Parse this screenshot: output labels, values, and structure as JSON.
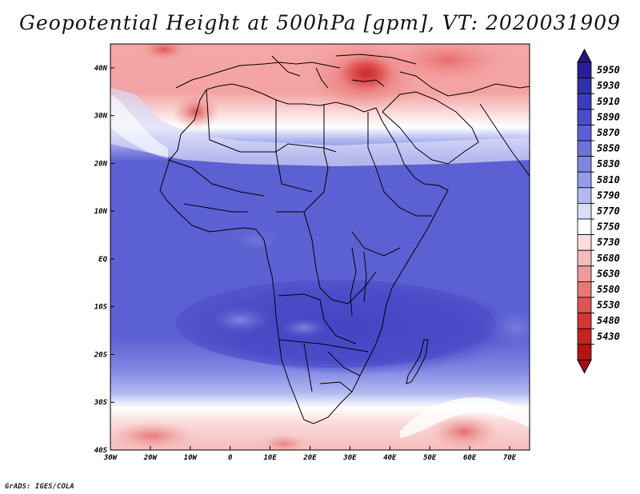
{
  "title": "Geopotential Height at 500hPa [gpm], VT: 2020031909",
  "credit": "GrADS: IGES/COLA",
  "map": {
    "variable": "Geopotential Height at 500hPa",
    "units": "gpm",
    "valid_time": "2020031909",
    "lon_range": [
      -30,
      75
    ],
    "lat_range": [
      -40,
      45
    ],
    "lon_ticks": [
      {
        "value": -30,
        "label": "30W"
      },
      {
        "value": -20,
        "label": "20W"
      },
      {
        "value": -10,
        "label": "10W"
      },
      {
        "value": 0,
        "label": "0"
      },
      {
        "value": 10,
        "label": "10E"
      },
      {
        "value": 20,
        "label": "20E"
      },
      {
        "value": 30,
        "label": "30E"
      },
      {
        "value": 40,
        "label": "40E"
      },
      {
        "value": 50,
        "label": "50E"
      },
      {
        "value": 60,
        "label": "60E"
      },
      {
        "value": 70,
        "label": "70E"
      }
    ],
    "lat_ticks": [
      {
        "value": 40,
        "label": "40N"
      },
      {
        "value": 30,
        "label": "30N"
      },
      {
        "value": 20,
        "label": "20N"
      },
      {
        "value": 10,
        "label": "10N"
      },
      {
        "value": 0,
        "label": "EQ"
      },
      {
        "value": -10,
        "label": "10S"
      },
      {
        "value": -20,
        "label": "20S"
      },
      {
        "value": -30,
        "label": "30S"
      },
      {
        "value": -40,
        "label": "40S"
      }
    ]
  },
  "colorbar": {
    "levels": [
      "5950",
      "5930",
      "5910",
      "5890",
      "5870",
      "5850",
      "5830",
      "5810",
      "5790",
      "5770",
      "5750",
      "5730",
      "5680",
      "5630",
      "5580",
      "5530",
      "5480",
      "5430"
    ],
    "colors": [
      "#2a1e95",
      "#3131a8",
      "#3b3cbc",
      "#4a4dc8",
      "#5b60d2",
      "#6c72da",
      "#7f86e2",
      "#959be9",
      "#b4b9f1",
      "#dadcf8",
      "#ffffff",
      "#fbdcdc",
      "#f5bcbc",
      "#f09a9a",
      "#ea7777",
      "#e15353",
      "#d73535",
      "#c52222",
      "#b51414"
    ],
    "top_color": "#22177f",
    "bottom_color": "#a50f15"
  }
}
